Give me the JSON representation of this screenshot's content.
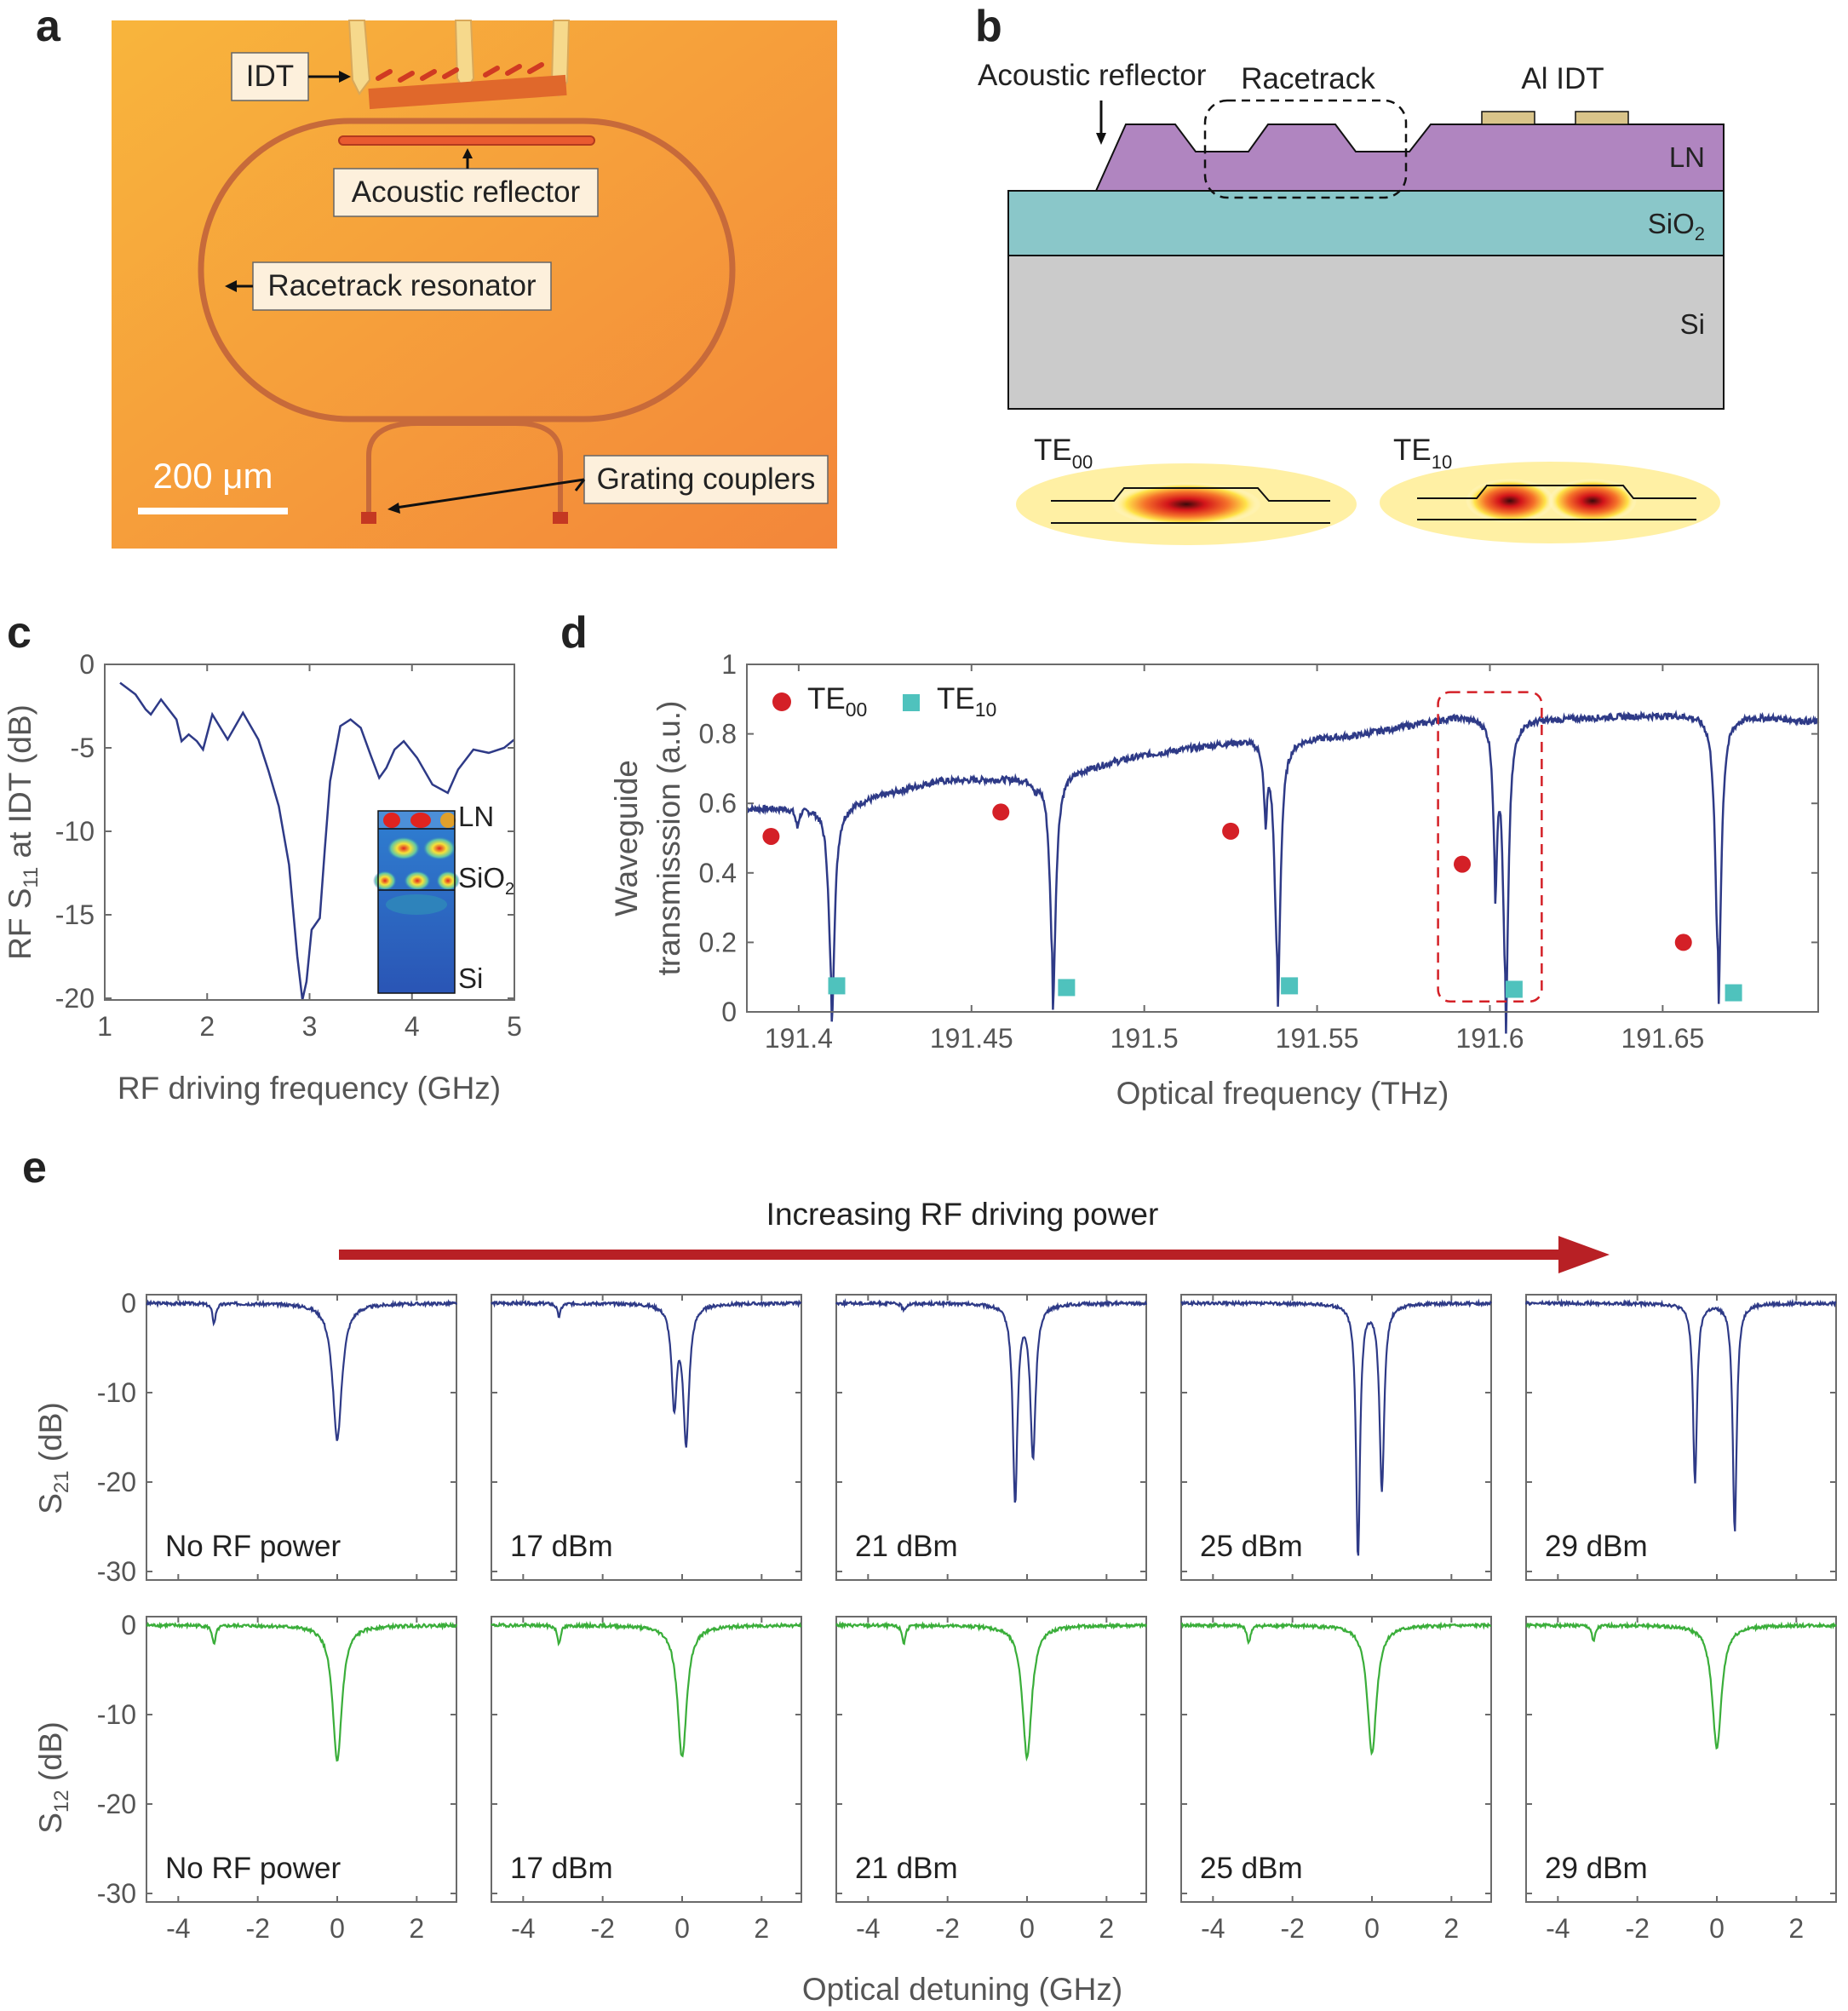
{
  "panel_labels": [
    "a",
    "b",
    "c",
    "d",
    "e"
  ],
  "panel_a": {
    "labels": {
      "idt": "IDT",
      "reflector": "Acoustic reflector",
      "racetrack": "Racetrack resonator",
      "couplers": "Grating couplers",
      "scale": "200 μm"
    },
    "colors": {
      "background": "#f49a3a",
      "waveguide": "#c9703a",
      "electrode": "#f2d27a"
    }
  },
  "panel_b": {
    "labels": {
      "acoustic_reflector": "Acoustic reflector",
      "racetrack": "Racetrack",
      "al_idt": "Al IDT",
      "ln": "LN",
      "sio2": "SiO",
      "sio2_sub": "2",
      "si": "Si",
      "te00": "TE",
      "te00_sub": "00",
      "te10": "TE",
      "te10_sub": "10"
    },
    "colors": {
      "ln": "#b085c0",
      "sio2": "#8ac7c9",
      "si": "#cbcbcb",
      "idt": "#d9c48a"
    }
  },
  "chart_data": [
    {
      "id": "c",
      "type": "line",
      "xlabel": "RF driving frequency (GHz)",
      "ylabel_parts": [
        "RF S",
        "11",
        " at IDT (dB)"
      ],
      "xlim": [
        1,
        5
      ],
      "ylim": [
        -21,
        0
      ],
      "xticks": [
        "1",
        "2",
        "3",
        "4",
        "5"
      ],
      "yticks": [
        "0",
        "-5",
        "-10",
        "-15",
        "-20"
      ],
      "inset_labels": {
        "ln": "LN",
        "sio2": "SiO",
        "sio2_sub": "2",
        "si": "Si"
      },
      "color": "#2e3a87",
      "x": [
        1.15,
        1.3,
        1.4,
        1.45,
        1.55,
        1.7,
        1.75,
        1.82,
        1.9,
        1.96,
        2.05,
        2.2,
        2.35,
        2.5,
        2.6,
        2.7,
        2.8,
        2.88,
        2.93,
        2.97,
        3.02,
        3.1,
        3.15,
        3.2,
        3.3,
        3.4,
        3.5,
        3.6,
        3.68,
        3.75,
        3.83,
        3.92,
        4.05,
        4.2,
        4.35,
        4.45,
        4.6,
        4.75,
        4.9,
        5.0
      ],
      "y": [
        -1.1,
        -1.8,
        -2.7,
        -3.0,
        -2.1,
        -3.3,
        -4.6,
        -4.2,
        -4.6,
        -5.1,
        -3.0,
        -4.5,
        -2.9,
        -4.5,
        -6.4,
        -8.5,
        -12.0,
        -17.5,
        -20.1,
        -19.0,
        -15.9,
        -15.2,
        -11.0,
        -7.0,
        -3.7,
        -3.3,
        -3.8,
        -5.5,
        -6.8,
        -6.2,
        -5.1,
        -4.6,
        -5.6,
        -7.2,
        -7.7,
        -6.3,
        -5.1,
        -5.3,
        -5.0,
        -4.5
      ]
    },
    {
      "id": "d",
      "type": "line",
      "xlabel": "Optical frequency (THz)",
      "ylabel_lines": [
        "Waveguide",
        "transmisssion (a.u.)"
      ],
      "xlim": [
        191.385,
        191.695
      ],
      "ylim": [
        0,
        1
      ],
      "xticks": [
        "191.4",
        "191.45",
        "191.5",
        "191.55",
        "191.6",
        "191.65"
      ],
      "yticks": [
        "0",
        "0.2",
        "0.4",
        "0.6",
        "0.8",
        "1"
      ],
      "legend": [
        {
          "name": "TE",
          "sub": "00",
          "marker": "circle",
          "color": "#d42027"
        },
        {
          "name": "TE",
          "sub": "10",
          "marker": "square",
          "color": "#4fc2bd"
        }
      ],
      "color": "#2e3a87",
      "baseline": {
        "x": [
          191.385,
          191.41,
          191.44,
          191.47,
          191.5,
          191.53,
          191.56,
          191.59,
          191.62,
          191.65,
          191.665,
          191.68,
          191.695
        ],
        "y": [
          0.585,
          0.59,
          0.665,
          0.675,
          0.74,
          0.785,
          0.795,
          0.85,
          0.845,
          0.855,
          0.86,
          0.85,
          0.835
        ]
      },
      "dips": [
        {
          "x": 191.3995,
          "depth": 0.05,
          "width": 0.0006
        },
        {
          "x": 191.4095,
          "depth": 0.56,
          "width": 0.001
        },
        {
          "x": 191.4685,
          "depth": 0.03,
          "width": 0.0006
        },
        {
          "x": 191.4735,
          "depth": 0.6,
          "width": 0.001
        },
        {
          "x": 191.535,
          "depth": 0.2,
          "width": 0.0006
        },
        {
          "x": 191.5385,
          "depth": 0.71,
          "width": 0.001
        },
        {
          "x": 191.6015,
          "depth": 0.42,
          "width": 0.0007
        },
        {
          "x": 191.6045,
          "depth": 0.82,
          "width": 0.0009
        },
        {
          "x": 191.666,
          "depth": 0.78,
          "width": 0.001
        }
      ],
      "te00_points": {
        "x": [
          191.392,
          191.4585,
          191.525,
          191.592,
          191.656
        ],
        "y": [
          0.505,
          0.575,
          0.52,
          0.425,
          0.2
        ]
      },
      "te10_points": {
        "x": [
          191.411,
          191.4775,
          191.542,
          191.607,
          191.6705
        ],
        "y": [
          0.075,
          0.07,
          0.075,
          0.065,
          0.055
        ]
      },
      "highlight_box": {
        "x": [
          191.585,
          191.615
        ],
        "y": [
          0.03,
          0.92
        ],
        "color": "#d42027"
      }
    },
    {
      "id": "e",
      "type": "line",
      "arrow_label": "Increasing RF driving power",
      "xlabel": "Optical detuning (GHz)",
      "xlim": [
        -4.8,
        3
      ],
      "ylim": [
        -30,
        1
      ],
      "xticks": [
        "-4",
        "-2",
        "0",
        "2"
      ],
      "yticks": [
        "0",
        "-10",
        "-20",
        "-30"
      ],
      "rows": [
        {
          "ylabel": "S",
          "ylabel_sub": "21",
          "ylabel_tail": " (dB)",
          "color": "#2e3a87"
        },
        {
          "ylabel": "S",
          "ylabel_sub": "12",
          "ylabel_tail": " (dB)",
          "color": "#3aae3a"
        }
      ],
      "panels": [
        {
          "label": "No RF power",
          "s21": [
            [
              0.0,
              15.3,
              0.14
            ]
          ],
          "s12": [
            [
              0.0,
              15.3,
              0.14
            ]
          ],
          "aux_x": -3.1,
          "aux21": 2.2,
          "aux12": 2.2
        },
        {
          "label": "17 dBm",
          "s21": [
            [
              -0.2,
              11.0,
              0.08
            ],
            [
              0.1,
              15.3,
              0.09
            ]
          ],
          "s12": [
            [
              0.0,
              14.8,
              0.14
            ]
          ],
          "aux_x": -3.1,
          "aux21": 1.5,
          "aux12": 2.0
        },
        {
          "label": "21 dBm",
          "s21": [
            [
              -0.3,
              22.0,
              0.07
            ],
            [
              0.15,
              17.0,
              0.08
            ]
          ],
          "s12": [
            [
              0.0,
              14.8,
              0.14
            ]
          ],
          "aux_x": -3.1,
          "aux21": 0.8,
          "aux12": 2.0
        },
        {
          "label": "25 dBm",
          "s21": [
            [
              -0.35,
              28.3,
              0.06
            ],
            [
              0.25,
              20.8,
              0.07
            ]
          ],
          "s12": [
            [
              0.0,
              14.3,
              0.14
            ]
          ],
          "aux_x": -3.1,
          "aux21": 0.0,
          "aux12": 2.0
        },
        {
          "label": "29 dBm",
          "s21": [
            [
              -0.55,
              20.0,
              0.06
            ],
            [
              0.45,
              25.5,
              0.06
            ]
          ],
          "s12": [
            [
              0.0,
              13.8,
              0.14
            ]
          ],
          "aux_x": -3.1,
          "aux21": 0.0,
          "aux12": 1.8
        }
      ]
    }
  ]
}
